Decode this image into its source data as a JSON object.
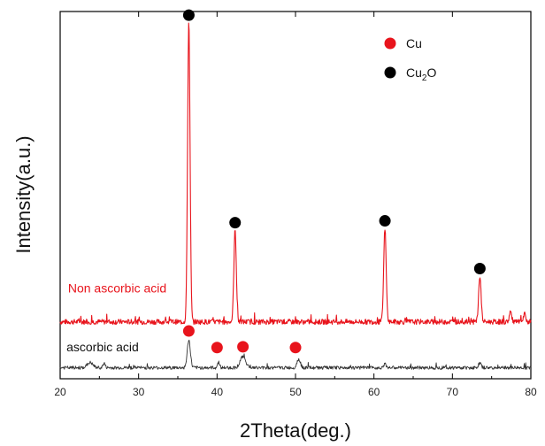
{
  "chart_data": {
    "type": "line",
    "title": "",
    "xlabel": "2Theta(deg.)",
    "ylabel": "Intensity(a.u.)",
    "xlim": [
      20,
      80
    ],
    "ylim": [
      0,
      100
    ],
    "x_ticks": [
      "20",
      "30",
      "40",
      "50",
      "60",
      "70",
      "80"
    ],
    "y_ticks": [],
    "grid": false,
    "legend_position": "top-right",
    "legend": [
      {
        "label": "Cu",
        "color": "#e8141c",
        "label_text": "Cu"
      },
      {
        "label": "Cu2O",
        "color": "#000000",
        "label_text": "Cu",
        "label_sub": "2",
        "label_suffix": "O"
      }
    ],
    "series": [
      {
        "name": "Non ascorbic acid",
        "color": "#e8141c",
        "baseline": 15.5,
        "peaks": [
          {
            "x": 36.4,
            "height": 82.0,
            "width": 0.22
          },
          {
            "x": 42.3,
            "height": 25.0,
            "width": 0.22
          },
          {
            "x": 61.4,
            "height": 25.5,
            "width": 0.22
          },
          {
            "x": 73.5,
            "height": 12.5,
            "width": 0.22
          },
          {
            "x": 77.4,
            "height": 2.8,
            "width": 0.2
          },
          {
            "x": 79.2,
            "height": 2.0,
            "width": 0.2
          }
        ],
        "noise": 0.7
      },
      {
        "name": "ascorbic acid",
        "color": "#333333",
        "baseline": 3.0,
        "peaks": [
          {
            "x": 23.8,
            "height": 1.4,
            "width": 0.5
          },
          {
            "x": 25.6,
            "height": 1.2,
            "width": 0.2
          },
          {
            "x": 36.4,
            "height": 7.5,
            "width": 0.28
          },
          {
            "x": 40.2,
            "height": 1.5,
            "width": 0.2
          },
          {
            "x": 43.3,
            "height": 3.0,
            "width": 0.5
          },
          {
            "x": 50.4,
            "height": 2.4,
            "width": 0.3
          },
          {
            "x": 61.4,
            "height": 0.9,
            "width": 0.3
          },
          {
            "x": 73.5,
            "height": 1.2,
            "width": 0.25
          }
        ],
        "noise": 0.45
      }
    ],
    "markers": [
      {
        "phase": "Cu2O",
        "color": "#000000",
        "x": 36.4,
        "y": 99.0
      },
      {
        "phase": "Cu2O",
        "color": "#000000",
        "x": 42.3,
        "y": 42.5
      },
      {
        "phase": "Cu2O",
        "color": "#000000",
        "x": 61.4,
        "y": 43.0
      },
      {
        "phase": "Cu2O",
        "color": "#000000",
        "x": 73.5,
        "y": 30.0
      },
      {
        "phase": "Cu",
        "color": "#e8141c",
        "x": 36.4,
        "y": 13.0
      },
      {
        "phase": "Cu",
        "color": "#e8141c",
        "x": 40.0,
        "y": 8.5
      },
      {
        "phase": "Cu",
        "color": "#e8141c",
        "x": 43.3,
        "y": 8.7
      },
      {
        "phase": "Cu",
        "color": "#e8141c",
        "x": 50.0,
        "y": 8.5
      }
    ],
    "annotations": [
      {
        "text": "Non ascorbic acid",
        "color": "#e8141c",
        "x": 21.0,
        "y": 23.5
      },
      {
        "text": "ascorbic acid",
        "color": "#111111",
        "x": 20.8,
        "y": 7.5
      }
    ]
  }
}
